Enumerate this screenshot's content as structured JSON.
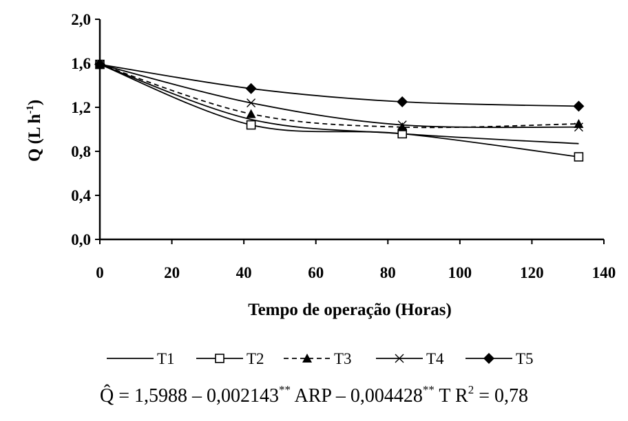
{
  "chart_data": {
    "type": "line",
    "title": "",
    "xlabel": "Tempo de operação (Horas)",
    "ylabel": "Q (L h-1)",
    "ylabel_parts": {
      "main": "Q (L h",
      "sup": "-1",
      "close": ")"
    },
    "xlim": [
      0,
      140
    ],
    "ylim": [
      0,
      2.0
    ],
    "x_ticks": [
      0,
      20,
      40,
      60,
      80,
      100,
      120,
      140
    ],
    "x_tick_labels": [
      "0",
      "20",
      "40",
      "60",
      "80",
      "100",
      "120",
      "140"
    ],
    "y_ticks": [
      0,
      0.4,
      0.8,
      1.2,
      1.6,
      2.0
    ],
    "y_tick_labels": [
      "0,0",
      "0,4",
      "0,8",
      "1,2",
      "1,6",
      "2,0"
    ],
    "grid": false,
    "legend_position": "bottom",
    "x": [
      0,
      42,
      84,
      133
    ],
    "series": [
      {
        "name": "T1",
        "marker": "none",
        "dash": "solid",
        "values": [
          1.59,
          1.09,
          0.96,
          0.87
        ]
      },
      {
        "name": "T2",
        "marker": "square-open",
        "dash": "solid",
        "values": [
          1.59,
          1.04,
          0.96,
          0.75
        ]
      },
      {
        "name": "T3",
        "marker": "triangle-filled",
        "dash": "dashed",
        "values": [
          1.59,
          1.14,
          1.02,
          1.05
        ]
      },
      {
        "name": "T4",
        "marker": "cross",
        "dash": "solid",
        "values": [
          1.59,
          1.24,
          1.04,
          1.02
        ]
      },
      {
        "name": "T5",
        "marker": "diamond-filled",
        "dash": "solid",
        "values": [
          1.59,
          1.37,
          1.25,
          1.21
        ]
      }
    ]
  },
  "equation": {
    "lhs": "Q̂",
    "text1": " = 1,5988 – 0,002143",
    "sup1": "**",
    "text2": " ARP – 0,004428",
    "sup2": "**",
    "text3": " T   R",
    "sup3": "2",
    "text4": " = 0,78"
  }
}
